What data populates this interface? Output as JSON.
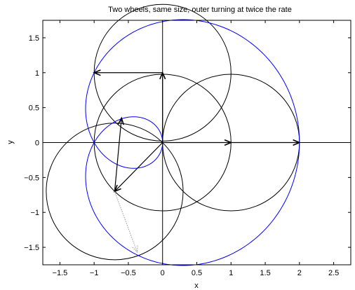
{
  "chart_data": {
    "type": "line",
    "title": "Two wheels, same size, outer turning at twice the rate",
    "xlabel": "x",
    "ylabel": "y",
    "xlim": [
      -1.75,
      2.75
    ],
    "ylim": [
      -1.75,
      1.75
    ],
    "x_ticks": [
      -1.5,
      -1,
      -0.5,
      0,
      0.5,
      1,
      1.5,
      2,
      2.5
    ],
    "x_tick_labels": [
      "−1.5",
      "−1",
      "−0.5",
      "0",
      "0.5",
      "1",
      "1.5",
      "2",
      "2.5"
    ],
    "y_ticks": [
      -1.5,
      -1,
      -0.5,
      0,
      0.5,
      1,
      1.5
    ],
    "y_tick_labels": [
      "−1.5",
      "−1",
      "−0.5",
      "0",
      "0.5",
      "1",
      "1.5"
    ],
    "grid": false,
    "curve": {
      "equation": "x = cos(t) + cos(2t), y = sin(t) + sin(2t)",
      "t_range": [
        0,
        6.2832
      ],
      "color": "#0000ff"
    },
    "circles": [
      {
        "cx": 0,
        "cy": 0,
        "r": 1
      },
      {
        "cx": 0,
        "cy": 1,
        "r": 1
      },
      {
        "cx": 1,
        "cy": 0,
        "r": 1
      },
      {
        "cx": -0.7,
        "cy": -0.7,
        "r": 1
      }
    ],
    "arrows": [
      {
        "x1": 0,
        "y1": 0,
        "x2": 0,
        "y2": 1,
        "style": "solid"
      },
      {
        "x1": 0,
        "y1": 1,
        "x2": -1,
        "y2": 1,
        "style": "solid"
      },
      {
        "x1": 0,
        "y1": 0,
        "x2": 1,
        "y2": 0,
        "style": "solid"
      },
      {
        "x1": 1,
        "y1": 0,
        "x2": 2,
        "y2": 0,
        "style": "solid"
      },
      {
        "x1": 0,
        "y1": 0,
        "x2": -0.7,
        "y2": -0.7,
        "style": "solid"
      },
      {
        "x1": -0.7,
        "y1": -0.7,
        "x2": -0.6,
        "y2": 0.35,
        "style": "solid"
      },
      {
        "x1": -0.7,
        "y1": -0.7,
        "x2": -0.37,
        "y2": -1.57,
        "style": "dotted"
      }
    ],
    "line_color": "#000000",
    "dotted_color": "#999999"
  }
}
